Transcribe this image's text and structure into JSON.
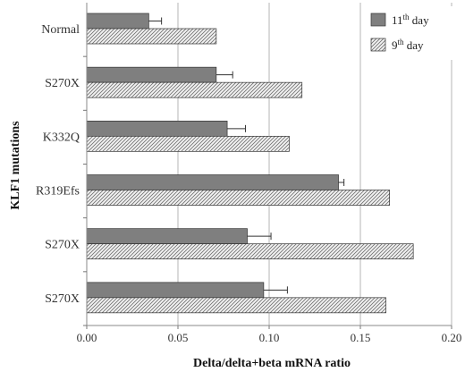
{
  "chart_data": {
    "type": "bar",
    "orientation": "horizontal",
    "xlabel": "Delta/delta+beta mRNA ratio",
    "ylabel": "KLF1 mutations",
    "xlim": [
      0,
      0.2
    ],
    "xticks": [
      "0.00",
      "0.05",
      "0.10",
      "0.15",
      "0.20"
    ],
    "grid": "vertical",
    "legend_position": "top-right",
    "categories": [
      "Normal",
      "S270X",
      "K332Q",
      "R319Efs",
      "S270X",
      "S270X"
    ],
    "series": [
      {
        "name": "11th day",
        "legend_base": "11",
        "legend_sup": "th",
        "legend_rest": " day",
        "color": "#7f7f7f",
        "pattern": "solid",
        "values": [
          0.034,
          0.071,
          0.077,
          0.138,
          0.088,
          0.097
        ],
        "errors": [
          0.007,
          0.009,
          0.01,
          0.003,
          0.013,
          0.013
        ]
      },
      {
        "name": "9th day",
        "legend_base": "9",
        "legend_sup": "th",
        "legend_rest": " day",
        "color": "#e6e6e6",
        "pattern": "diagonal-hatch",
        "values": [
          0.071,
          0.118,
          0.111,
          0.166,
          0.179,
          0.164
        ],
        "errors": [
          null,
          null,
          null,
          null,
          null,
          null
        ]
      }
    ]
  }
}
